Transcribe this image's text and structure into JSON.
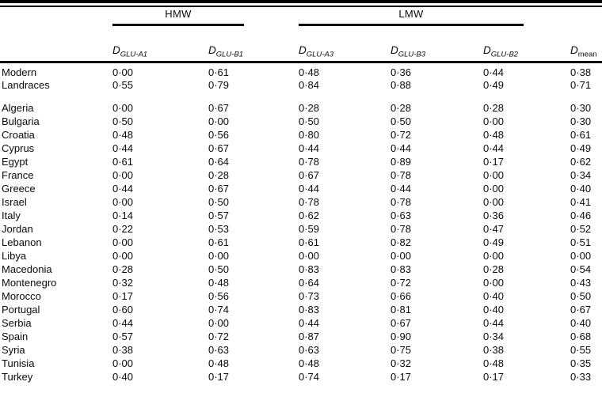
{
  "table": {
    "group_headers": [
      {
        "label": "HMW"
      },
      {
        "label": "LMW"
      }
    ],
    "columns": [
      {
        "base": "D",
        "sub": "GLU-A1"
      },
      {
        "base": "D",
        "sub": "GLU-B1"
      },
      {
        "base": "D",
        "sub": "GLU-A3"
      },
      {
        "base": "D",
        "sub": "GLU-B3"
      },
      {
        "base": "D",
        "sub": "GLU-B2"
      },
      {
        "base": "D",
        "sub": "mean"
      }
    ],
    "groups": [
      {
        "rows": [
          {
            "label": "Modern",
            "values": [
              "0·00",
              "0·61",
              "0·48",
              "0·36",
              "0·44",
              "0·38"
            ]
          },
          {
            "label": "Landraces",
            "values": [
              "0·55",
              "0·79",
              "0·84",
              "0·88",
              "0·49",
              "0·71"
            ]
          }
        ]
      },
      {
        "rows": [
          {
            "label": "Algeria",
            "values": [
              "0·00",
              "0·67",
              "0·28",
              "0·28",
              "0·28",
              "0·30"
            ]
          },
          {
            "label": "Bulgaria",
            "values": [
              "0·50",
              "0·00",
              "0·50",
              "0·50",
              "0·00",
              "0·30"
            ]
          },
          {
            "label": "Croatia",
            "values": [
              "0·48",
              "0·56",
              "0·80",
              "0·72",
              "0·48",
              "0·61"
            ]
          },
          {
            "label": "Cyprus",
            "values": [
              "0·44",
              "0·67",
              "0·44",
              "0·44",
              "0·44",
              "0·49"
            ]
          },
          {
            "label": "Egypt",
            "values": [
              "0·61",
              "0·64",
              "0·78",
              "0·89",
              "0·17",
              "0·62"
            ]
          },
          {
            "label": "France",
            "values": [
              "0·00",
              "0·28",
              "0·67",
              "0·78",
              "0·00",
              "0·34"
            ]
          },
          {
            "label": "Greece",
            "values": [
              "0·44",
              "0·67",
              "0·44",
              "0·44",
              "0·00",
              "0·40"
            ]
          },
          {
            "label": "Israel",
            "values": [
              "0·00",
              "0·50",
              "0·78",
              "0·78",
              "0·00",
              "0·41"
            ]
          },
          {
            "label": "Italy",
            "values": [
              "0·14",
              "0·57",
              "0·62",
              "0·63",
              "0·36",
              "0·46"
            ]
          },
          {
            "label": "Jordan",
            "values": [
              "0·22",
              "0·53",
              "0·59",
              "0·78",
              "0·47",
              "0·52"
            ]
          },
          {
            "label": "Lebanon",
            "values": [
              "0·00",
              "0·61",
              "0·61",
              "0·82",
              "0·49",
              "0·51"
            ]
          },
          {
            "label": "Libya",
            "values": [
              "0·00",
              "0·00",
              "0·00",
              "0·00",
              "0·00",
              "0·00"
            ]
          },
          {
            "label": "Macedonia",
            "values": [
              "0·28",
              "0·50",
              "0·83",
              "0·83",
              "0·28",
              "0·54"
            ]
          },
          {
            "label": "Montenegro",
            "values": [
              "0·32",
              "0·48",
              "0·64",
              "0·72",
              "0·00",
              "0·43"
            ]
          },
          {
            "label": "Morocco",
            "values": [
              "0·17",
              "0·56",
              "0·73",
              "0·66",
              "0·40",
              "0·50"
            ]
          },
          {
            "label": "Portugal",
            "values": [
              "0·60",
              "0·74",
              "0·83",
              "0·81",
              "0·40",
              "0·67"
            ]
          },
          {
            "label": "Serbia",
            "values": [
              "0·44",
              "0·00",
              "0·44",
              "0·67",
              "0·44",
              "0·40"
            ]
          },
          {
            "label": "Spain",
            "values": [
              "0·57",
              "0·72",
              "0·87",
              "0·90",
              "0·34",
              "0·68"
            ]
          },
          {
            "label": "Syria",
            "values": [
              "0·38",
              "0·63",
              "0·63",
              "0·75",
              "0·38",
              "0·55"
            ]
          },
          {
            "label": "Tunisia",
            "values": [
              "0·00",
              "0·48",
              "0·48",
              "0·32",
              "0·48",
              "0·35"
            ]
          },
          {
            "label": "Turkey",
            "values": [
              "0·40",
              "0·17",
              "0·74",
              "0·17",
              "0·17",
              "0·33"
            ]
          }
        ]
      }
    ]
  }
}
